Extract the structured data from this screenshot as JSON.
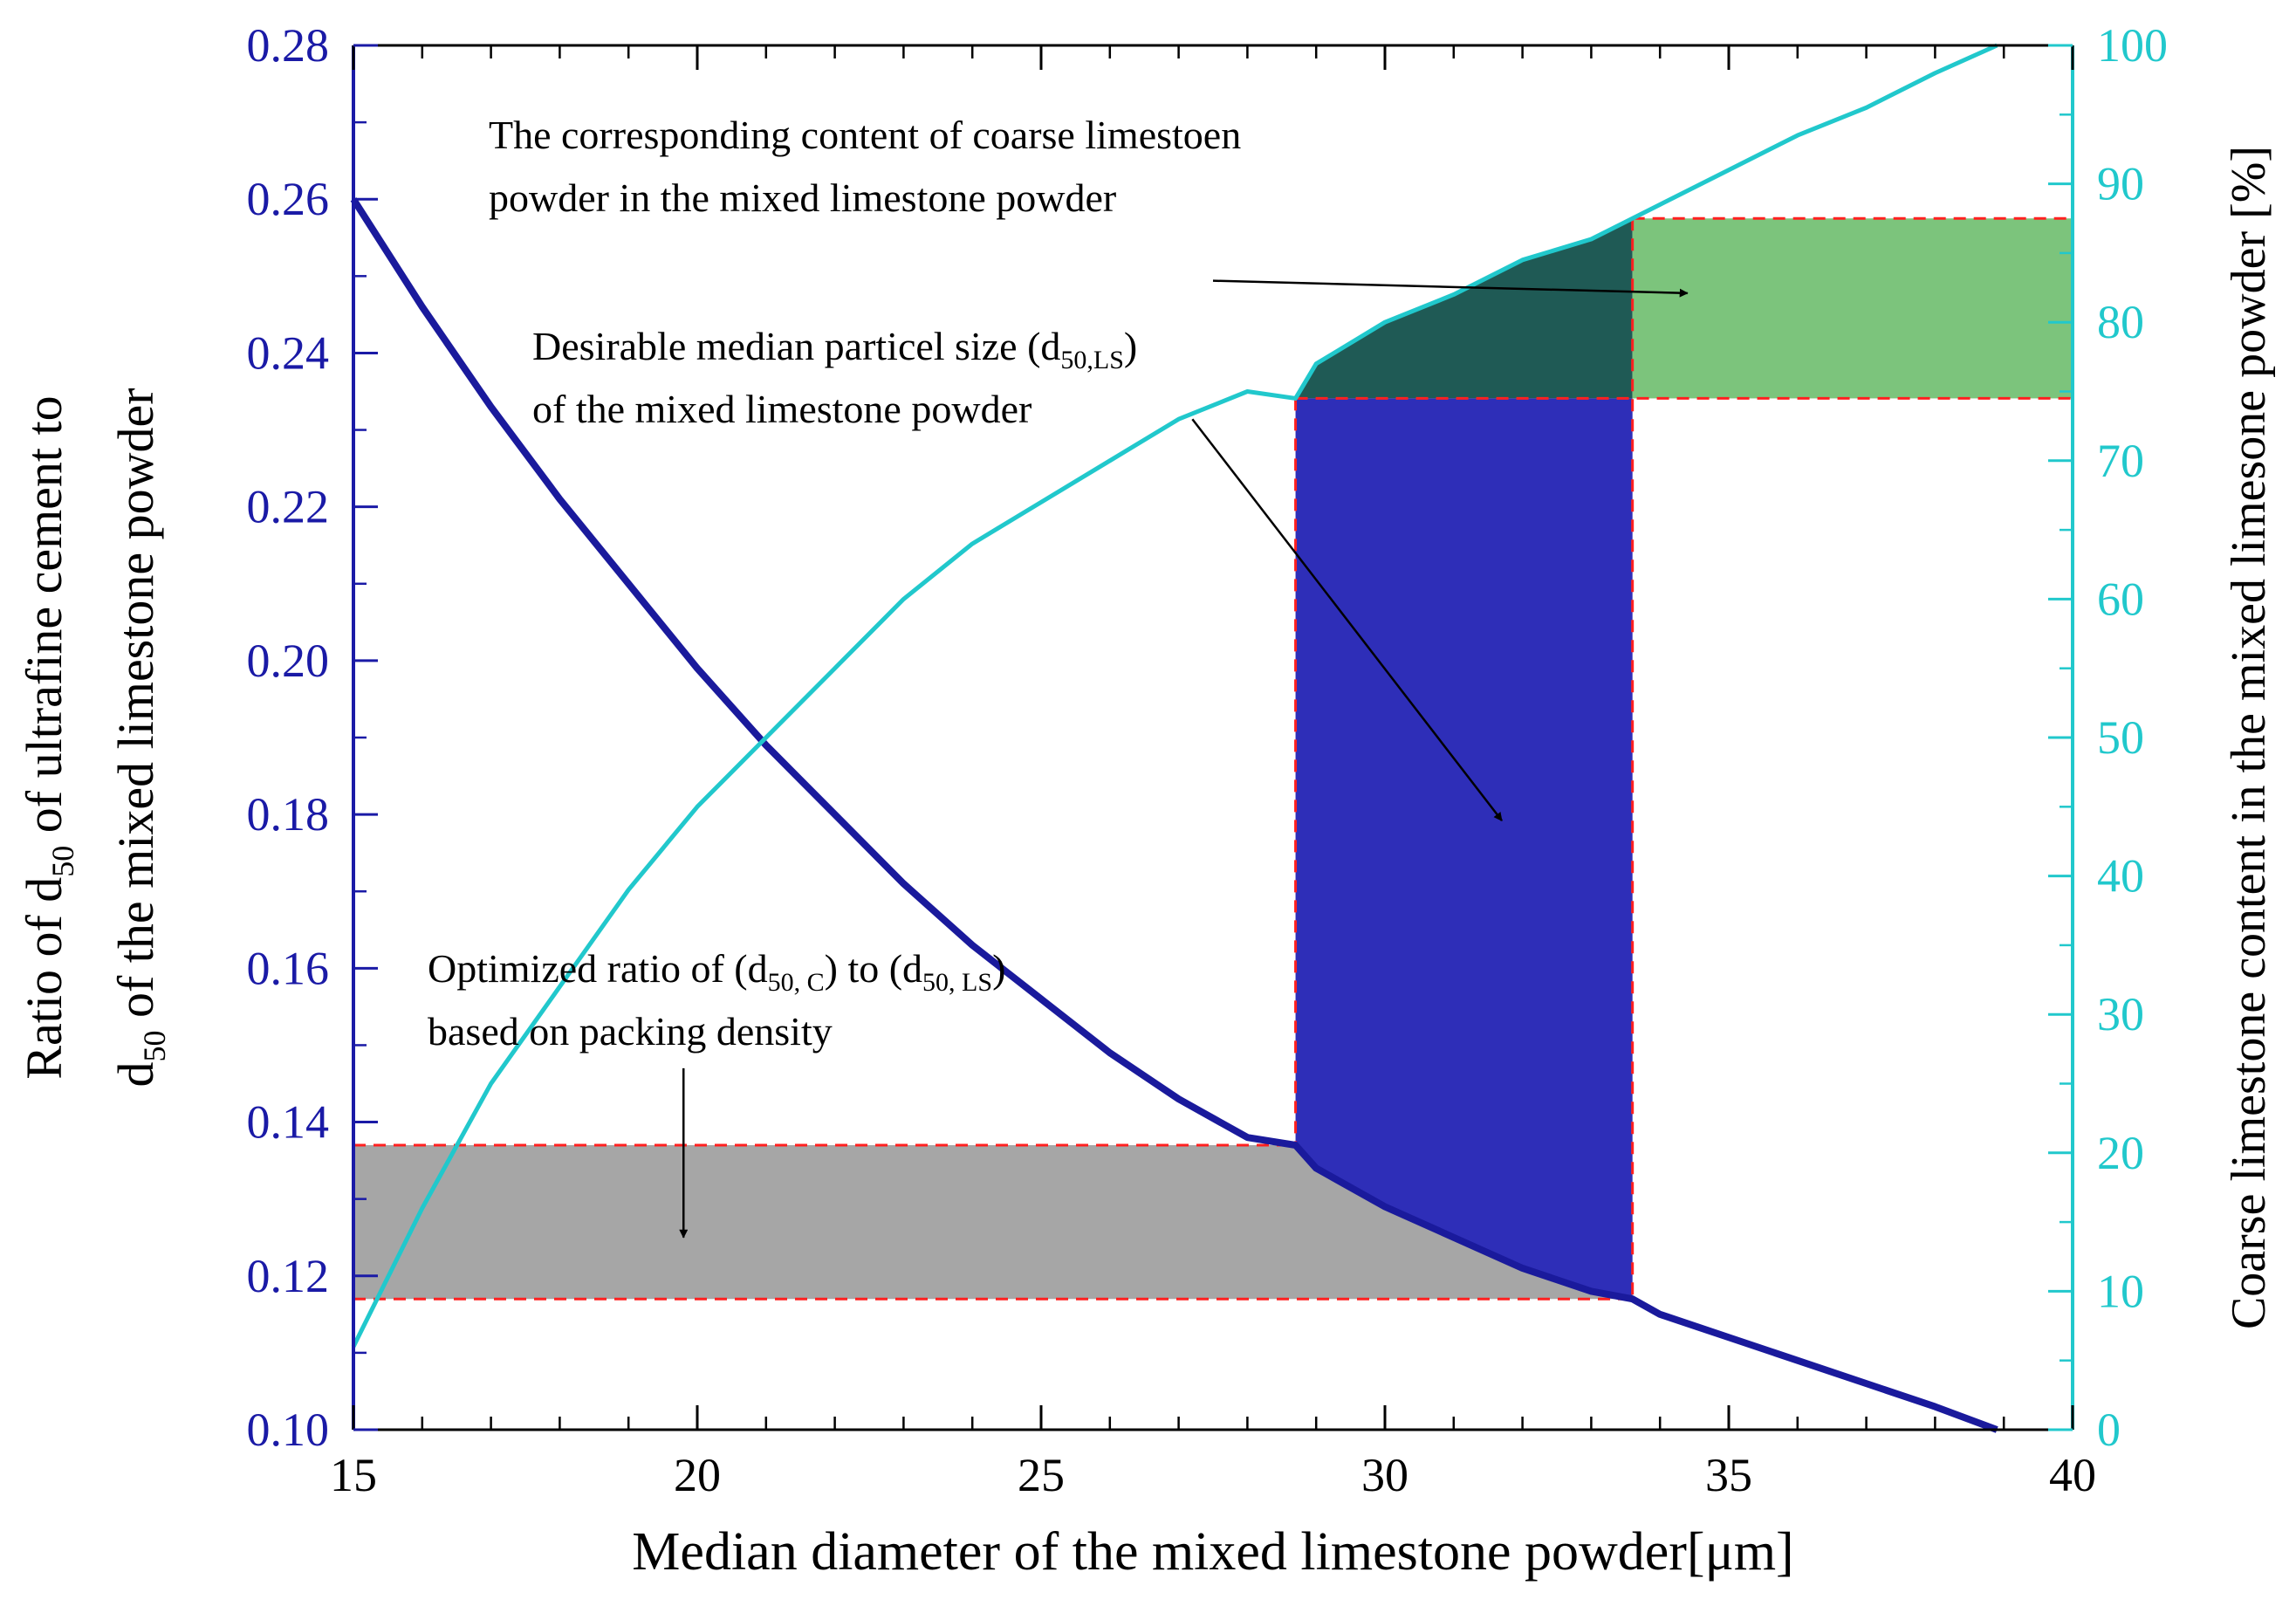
{
  "chart_data": {
    "type": "line",
    "xlabel": "Median diameter of the mixed limestone powder[μm]",
    "ylabel_left": {
      "line1": [
        "Ratio of d",
        "50",
        " of ultrafine cement to"
      ],
      "line2": [
        "d",
        "50",
        " of the mixed limestone powder"
      ]
    },
    "ylabel_right": "Coarse limestone content in the mixed limesone powder [%]",
    "xlim": [
      15,
      40
    ],
    "ylim_left": [
      0.1,
      0.28
    ],
    "ylim_right": [
      0,
      100
    ],
    "x_ticks": [
      "15",
      "20",
      "25",
      "30",
      "35",
      "40"
    ],
    "y_left_ticks": [
      "0.10",
      "0.12",
      "0.14",
      "0.16",
      "0.18",
      "0.20",
      "0.22",
      "0.24",
      "0.26",
      "0.28"
    ],
    "y_right_ticks": [
      "0",
      "10",
      "20",
      "30",
      "40",
      "50",
      "60",
      "70",
      "80",
      "90",
      "100"
    ],
    "colors": {
      "ratio_curve": "#1a1a9c",
      "content_curve": "#21c8cc",
      "left_axis": "#1a1aa6",
      "right_axis": "#21c8cc",
      "gray_band": "#a6a6a6",
      "blue_band": "#2e2eb8",
      "dark_green_region": "#1f5a55",
      "green_band": "#7cc47c",
      "dashed_border": "#ff2020"
    },
    "series": [
      {
        "axis": "left",
        "x": [
          15,
          16,
          17,
          18,
          19,
          20,
          21,
          22,
          23,
          24,
          25,
          26,
          27,
          28,
          28.7,
          29,
          30,
          31,
          32,
          33,
          33.6,
          34,
          35,
          36,
          37,
          38,
          38.9
        ],
        "values": [
          0.26,
          0.246,
          0.233,
          0.221,
          0.21,
          0.199,
          0.189,
          0.18,
          0.171,
          0.163,
          0.156,
          0.149,
          0.143,
          0.138,
          0.137,
          0.134,
          0.129,
          0.125,
          0.121,
          0.118,
          0.117,
          0.115,
          0.112,
          0.109,
          0.106,
          0.103,
          0.1
        ]
      },
      {
        "axis": "right",
        "x": [
          15,
          16,
          17,
          18,
          19,
          20,
          21,
          22,
          23,
          24,
          25,
          26,
          27,
          28,
          28.7,
          29,
          30,
          31,
          32,
          33,
          33.6,
          34,
          35,
          36,
          37,
          38,
          38.9
        ],
        "values": [
          6,
          16,
          25,
          32,
          39,
          45,
          50,
          55,
          60,
          64,
          67,
          70,
          73,
          75,
          74.5,
          77,
          80,
          82,
          84.5,
          86,
          87.5,
          88.5,
          91,
          93.5,
          95.5,
          98,
          100
        ]
      }
    ],
    "regions": {
      "ratio_band": {
        "x": [
          15,
          33.6
        ],
        "y_left": [
          0.117,
          0.137
        ]
      },
      "size_band": {
        "x": [
          28.7,
          33.6
        ],
        "y_right": [
          74.5,
          87.5
        ]
      },
      "content_band": {
        "x": [
          33.6,
          40
        ],
        "y_right": [
          74.5,
          87.5
        ]
      }
    },
    "annotations": {
      "content": {
        "lines": [
          [
            {
              "t": "The corresponding  content of  coarse limestoen"
            }
          ],
          [
            {
              "t": "powder in the mixed limestone powder"
            }
          ]
        ],
        "arrow_from": [
          27.5,
          83.0
        ],
        "arrow_to": [
          34.4,
          82.1
        ]
      },
      "size": {
        "lines": [
          [
            {
              "t": "Desirable median particel size (d"
            },
            {
              "t": "50,LS",
              "sub": true
            },
            {
              "t": ")"
            }
          ],
          [
            {
              "t": "of the mixed  limestone powder"
            }
          ]
        ],
        "arrow_from": [
          27.2,
          73.0
        ],
        "arrow_to": [
          31.7,
          44.0
        ]
      },
      "ratio": {
        "lines": [
          [
            {
              "t": "Optimized ratio of  (d"
            },
            {
              "t": "50, C",
              "sub": true
            },
            {
              "t": ") to (d"
            },
            {
              "t": "50, LS",
              "sub": true
            },
            {
              "t": ")"
            }
          ],
          [
            {
              "t": "based on packing density"
            }
          ]
        ],
        "arrow_from": [
          19.8,
          0.147
        ],
        "arrow_to": [
          19.8,
          0.125
        ]
      }
    }
  }
}
